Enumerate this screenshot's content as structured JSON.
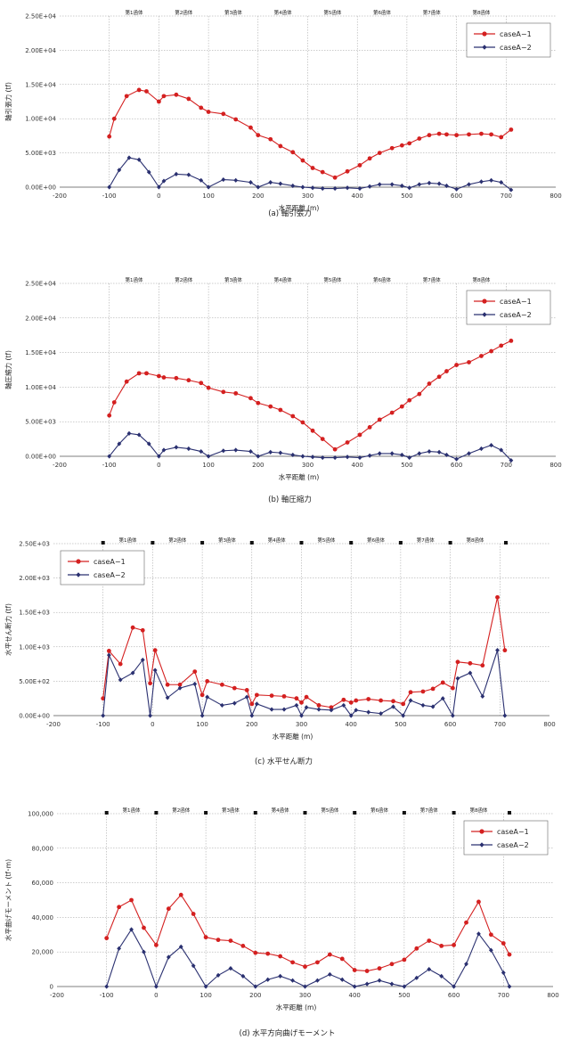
{
  "chart_data": [
    {
      "type": "line",
      "title": "(a) 軸引張力",
      "ylabel": "軸引張力 (tf)",
      "xlabel": "水平距離 (m)",
      "xlim": [
        -200,
        800
      ],
      "xticks": [
        "-200",
        "-100",
        "0",
        "100",
        "200",
        "300",
        "400",
        "500",
        "600",
        "700",
        "800"
      ],
      "ylim": [
        0,
        25000
      ],
      "yticks": [
        "0.00E+00",
        "5.00E+03",
        "1.00E+04",
        "1.50E+04",
        "2.00E+04",
        "2.50E+04"
      ],
      "segments": [
        "第1函体",
        "第2函体",
        "第3函体",
        "第4函体",
        "第5函体",
        "第6函体",
        "第7函体",
        "第8函体"
      ],
      "segment_markers": false,
      "legend": "top-right",
      "series": [
        {
          "name": "caseA−1",
          "color": "#d42020",
          "marker": "circle",
          "x": [
            -100,
            -90,
            -65,
            -40,
            -25,
            0,
            10,
            35,
            60,
            85,
            100,
            130,
            155,
            185,
            200,
            225,
            245,
            270,
            290,
            310,
            330,
            355,
            380,
            405,
            425,
            445,
            470,
            490,
            505,
            525,
            545,
            565,
            580,
            600,
            625,
            650,
            670,
            690,
            710
          ],
          "y": [
            7400,
            10000,
            13300,
            14200,
            14000,
            12500,
            13300,
            13500,
            12900,
            11600,
            11000,
            10700,
            9900,
            8700,
            7600,
            7000,
            6000,
            5100,
            3900,
            2800,
            2200,
            1400,
            2300,
            3200,
            4200,
            5000,
            5700,
            6100,
            6400,
            7100,
            7600,
            7800,
            7700,
            7600,
            7700,
            7800,
            7700,
            7300,
            8400
          ]
        },
        {
          "name": "caseA−2",
          "color": "#2a3070",
          "marker": "diamond",
          "x": [
            -100,
            -80,
            -60,
            -40,
            -20,
            0,
            10,
            35,
            60,
            85,
            100,
            130,
            155,
            185,
            200,
            225,
            245,
            270,
            290,
            310,
            330,
            355,
            380,
            405,
            425,
            445,
            470,
            490,
            505,
            525,
            545,
            565,
            580,
            600,
            625,
            650,
            670,
            690,
            710
          ],
          "y": [
            0,
            2500,
            4300,
            4000,
            2200,
            0,
            900,
            1900,
            1800,
            1000,
            0,
            1100,
            1000,
            700,
            0,
            700,
            500,
            200,
            0,
            -100,
            -200,
            -200,
            -100,
            -200,
            100,
            400,
            400,
            200,
            -100,
            400,
            600,
            500,
            200,
            -300,
            400,
            800,
            1000,
            700,
            -400
          ]
        }
      ]
    },
    {
      "type": "line",
      "title": "(b) 軸圧縮力",
      "ylabel": "軸圧縮力 (tf)",
      "xlabel": "水平距離 (m)",
      "xlim": [
        -200,
        800
      ],
      "xticks": [
        "-200",
        "-100",
        "0",
        "100",
        "200",
        "300",
        "400",
        "500",
        "600",
        "700",
        "800"
      ],
      "ylim": [
        0,
        25000
      ],
      "yticks": [
        "0.00E+00",
        "5.00E+03",
        "1.00E+04",
        "1.50E+04",
        "2.00E+04",
        "2.50E+04"
      ],
      "segments": [
        "第1函体",
        "第2函体",
        "第3函体",
        "第4函体",
        "第5函体",
        "第6函体",
        "第7函体",
        "第8函体"
      ],
      "segment_markers": false,
      "legend": "top-right",
      "series": [
        {
          "name": "caseA−1",
          "color": "#d42020",
          "marker": "circle",
          "x": [
            -100,
            -90,
            -65,
            -40,
            -25,
            0,
            10,
            35,
            60,
            85,
            100,
            130,
            155,
            185,
            200,
            225,
            245,
            270,
            290,
            310,
            330,
            355,
            380,
            405,
            425,
            445,
            470,
            490,
            505,
            525,
            545,
            565,
            580,
            600,
            625,
            650,
            670,
            690,
            710
          ],
          "y": [
            5900,
            7800,
            10800,
            12000,
            12000,
            11600,
            11400,
            11300,
            11000,
            10600,
            9900,
            9300,
            9100,
            8400,
            7700,
            7200,
            6700,
            5800,
            4900,
            3700,
            2500,
            1000,
            2000,
            3100,
            4200,
            5300,
            6300,
            7200,
            8100,
            9000,
            10500,
            11500,
            12300,
            13200,
            13600,
            14500,
            15200,
            16000,
            16700
          ]
        },
        {
          "name": "caseA−2",
          "color": "#2a3070",
          "marker": "diamond",
          "x": [
            -100,
            -80,
            -60,
            -40,
            -20,
            0,
            10,
            35,
            60,
            85,
            100,
            130,
            155,
            185,
            200,
            225,
            245,
            270,
            290,
            310,
            330,
            355,
            380,
            405,
            425,
            445,
            470,
            490,
            505,
            525,
            545,
            565,
            580,
            600,
            625,
            650,
            670,
            690,
            710
          ],
          "y": [
            0,
            1800,
            3300,
            3100,
            1800,
            0,
            900,
            1300,
            1100,
            700,
            0,
            800,
            900,
            700,
            0,
            600,
            500,
            200,
            0,
            -100,
            -200,
            -200,
            -100,
            -200,
            100,
            400,
            400,
            200,
            -200,
            400,
            700,
            600,
            200,
            -400,
            400,
            1100,
            1600,
            900,
            -600
          ]
        }
      ]
    },
    {
      "type": "line",
      "title": "(c) 水平せん断力",
      "ylabel": "水平せん断力 (tf)",
      "xlabel": "水平距離 (m)",
      "xlim": [
        -200,
        800
      ],
      "xticks": [
        "-200",
        "-100",
        "0",
        "100",
        "200",
        "300",
        "400",
        "500",
        "600",
        "700",
        "800"
      ],
      "ylim": [
        0,
        2500
      ],
      "yticks": [
        "0.00E+00",
        "5.00E+02",
        "1.00E+03",
        "1.50E+03",
        "2.00E+03",
        "2.50E+03"
      ],
      "segments": [
        "第1函体",
        "第2函体",
        "第3函体",
        "第4函体",
        "第5函体",
        "第6函体",
        "第7函体",
        "第8函体"
      ],
      "segment_markers": true,
      "legend": "top-left",
      "series": [
        {
          "name": "caseA−1",
          "color": "#d42020",
          "marker": "circle",
          "x": [
            -100,
            -88,
            -65,
            -40,
            -20,
            -5,
            5,
            30,
            55,
            85,
            100,
            110,
            140,
            165,
            190,
            200,
            210,
            240,
            265,
            290,
            300,
            310,
            335,
            360,
            385,
            400,
            410,
            435,
            460,
            485,
            505,
            520,
            545,
            565,
            585,
            605,
            615,
            640,
            665,
            695,
            710
          ],
          "y": [
            250,
            940,
            750,
            1280,
            1240,
            470,
            950,
            450,
            450,
            640,
            300,
            500,
            450,
            400,
            370,
            170,
            300,
            290,
            280,
            250,
            190,
            270,
            150,
            120,
            230,
            190,
            220,
            240,
            220,
            210,
            170,
            340,
            350,
            390,
            480,
            400,
            780,
            760,
            730,
            1720,
            950
          ]
        },
        {
          "name": "caseA−2",
          "color": "#2a3070",
          "marker": "diamond",
          "x": [
            -100,
            -88,
            -65,
            -40,
            -20,
            -5,
            5,
            30,
            55,
            85,
            100,
            110,
            140,
            165,
            190,
            200,
            210,
            240,
            265,
            290,
            300,
            310,
            335,
            360,
            385,
            400,
            410,
            435,
            460,
            485,
            505,
            520,
            545,
            565,
            585,
            605,
            615,
            640,
            665,
            695,
            710
          ],
          "y": [
            0,
            880,
            520,
            620,
            810,
            0,
            660,
            260,
            400,
            460,
            0,
            270,
            150,
            180,
            270,
            0,
            170,
            90,
            90,
            150,
            0,
            120,
            90,
            80,
            150,
            0,
            80,
            50,
            30,
            130,
            0,
            220,
            150,
            130,
            250,
            0,
            540,
            620,
            280,
            950,
            0
          ]
        }
      ]
    },
    {
      "type": "line",
      "title": "(d) 水平方向曲げモーメント",
      "ylabel": "水平曲げモーメント (tf･m)",
      "xlabel": "水平距離 (m)",
      "xlim": [
        -200,
        800
      ],
      "xticks": [
        "-200",
        "-100",
        "0",
        "100",
        "200",
        "300",
        "400",
        "500",
        "600",
        "700",
        "800"
      ],
      "ylim": [
        0,
        100000
      ],
      "yticks": [
        "0",
        "20,000",
        "40,000",
        "60,000",
        "80,000",
        "100,000"
      ],
      "segments": [
        "第1函体",
        "第2函体",
        "第3函体",
        "第4函体",
        "第5函体",
        "第6函体",
        "第7函体",
        "第8函体"
      ],
      "segment_markers": true,
      "legend": "top-right",
      "series": [
        {
          "name": "caseA−1",
          "color": "#d42020",
          "marker": "circle",
          "x": [
            -100,
            -75,
            -50,
            -25,
            0,
            25,
            50,
            75,
            100,
            125,
            150,
            175,
            200,
            225,
            250,
            275,
            300,
            325,
            350,
            375,
            400,
            425,
            450,
            475,
            500,
            525,
            550,
            575,
            600,
            625,
            650,
            675,
            700,
            712
          ],
          "y": [
            28000,
            46000,
            50000,
            34000,
            24000,
            45000,
            53000,
            42000,
            28500,
            27000,
            26500,
            23500,
            19500,
            19000,
            17500,
            14000,
            11500,
            14000,
            18500,
            16000,
            9500,
            9000,
            10500,
            13000,
            15500,
            22000,
            26500,
            23500,
            24000,
            37000,
            49000,
            30000,
            25000,
            18500
          ]
        },
        {
          "name": "caseA−2",
          "color": "#2a3070",
          "marker": "diamond",
          "x": [
            -100,
            -75,
            -50,
            -25,
            0,
            25,
            50,
            75,
            100,
            125,
            150,
            175,
            200,
            225,
            250,
            275,
            300,
            325,
            350,
            375,
            400,
            425,
            450,
            475,
            500,
            525,
            550,
            575,
            600,
            625,
            650,
            675,
            700,
            712
          ],
          "y": [
            0,
            22000,
            33000,
            20000,
            0,
            17000,
            23000,
            12000,
            0,
            6500,
            10500,
            6000,
            0,
            4000,
            6000,
            3500,
            0,
            3500,
            7000,
            4000,
            0,
            1500,
            3500,
            1500,
            0,
            5000,
            10000,
            6000,
            0,
            13000,
            30500,
            21000,
            8000,
            0
          ]
        }
      ]
    }
  ]
}
